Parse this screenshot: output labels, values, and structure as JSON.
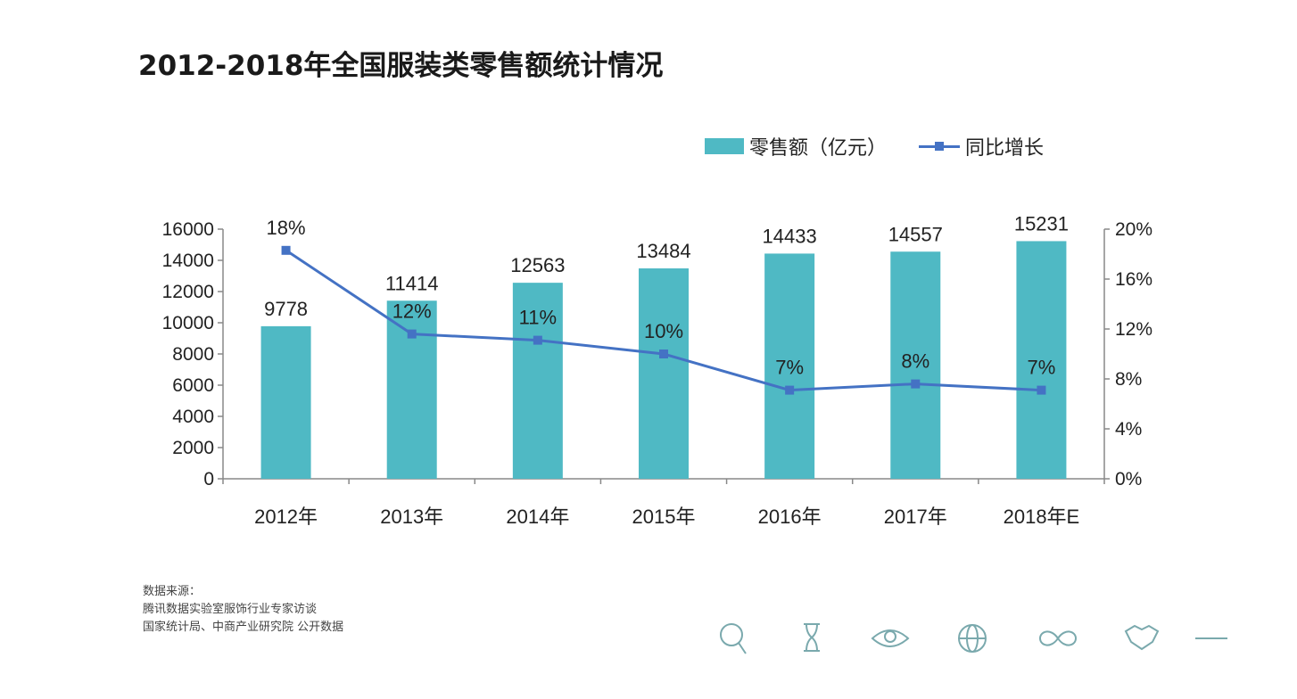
{
  "title": "2012-2018年全国服装类零售额统计情况",
  "chart_data": {
    "type": "bar+line",
    "title": "2012-2018年全国服装类零售额统计情况",
    "categories": [
      "2012年",
      "2013年",
      "2014年",
      "2015年",
      "2016年",
      "2017年",
      "2018年E"
    ],
    "series": [
      {
        "name": "零售额（亿元）",
        "type": "bar",
        "axis": "left",
        "values": [
          9778,
          11414,
          12563,
          13484,
          14433,
          14557,
          15231
        ],
        "labels": [
          "9778",
          "11414",
          "12563",
          "13484",
          "14433",
          "14557",
          "15231"
        ],
        "color": "#4fb9c4"
      },
      {
        "name": "同比增长",
        "type": "line",
        "axis": "right",
        "values": [
          18.3,
          11.6,
          11.1,
          10.0,
          7.1,
          7.6,
          7.1
        ],
        "labels": [
          "18%",
          "12%",
          "11%",
          "10%",
          "7%",
          "8%",
          "7%"
        ],
        "color": "#4472c4"
      }
    ],
    "y_left": {
      "ylim": [
        0,
        16000
      ],
      "ticks": [
        "0",
        "2000",
        "4000",
        "6000",
        "8000",
        "10000",
        "12000",
        "14000",
        "16000"
      ]
    },
    "y_right": {
      "ylim": [
        0,
        20
      ],
      "ticks": [
        "0%",
        "4%",
        "8%",
        "12%",
        "16%",
        "20%"
      ]
    },
    "grid": false,
    "legend": "top-right"
  },
  "legend": {
    "bar": "零售额（亿元）",
    "line": "同比增长"
  },
  "source": {
    "label": "数据来源：",
    "lines": [
      "腾讯数据实验室服饰行业专家访谈",
      "国家统计局、中商产业研究院 公开数据"
    ]
  },
  "footer_icons": [
    "search-icon",
    "hourglass-icon",
    "eye-icon",
    "globe-icon",
    "infinity-icon",
    "handshake-icon"
  ]
}
